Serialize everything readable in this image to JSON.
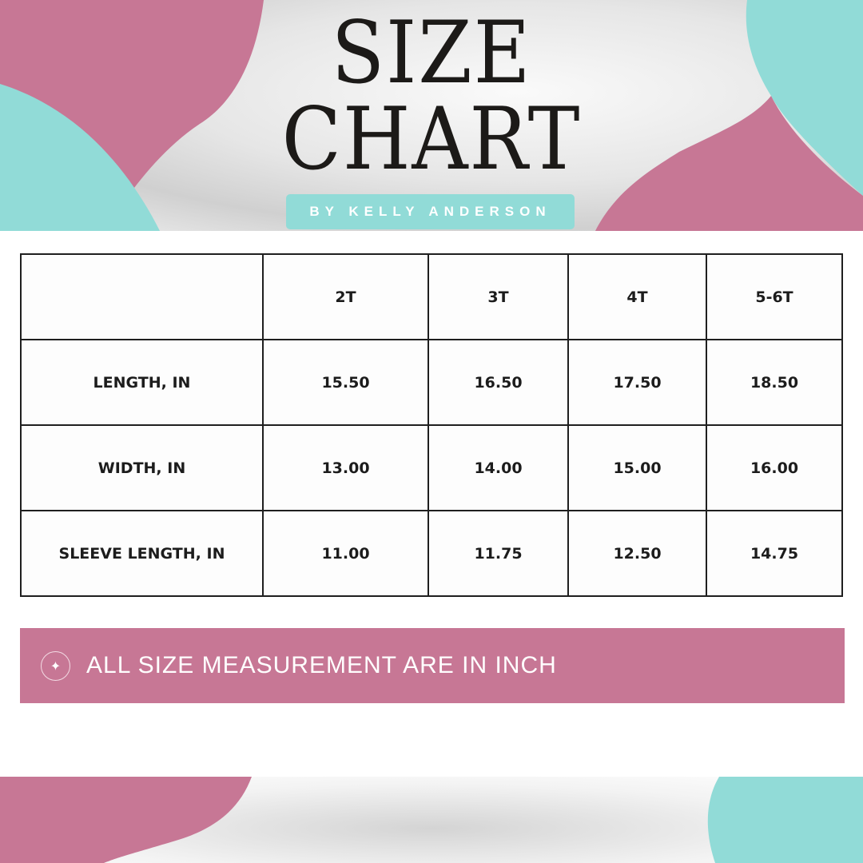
{
  "header": {
    "title_line1": "SIZE",
    "title_line2": "CHART",
    "byline": "BY KELLY ANDERSON"
  },
  "colors": {
    "pink": "#c77795",
    "teal": "#91dbd7",
    "text": "#1c1a18"
  },
  "table": {
    "columns": [
      "",
      "2T",
      "3T",
      "4T",
      "5-6T"
    ],
    "rows": [
      {
        "label": "LENGTH, IN",
        "values": [
          "15.50",
          "16.50",
          "17.50",
          "18.50"
        ]
      },
      {
        "label": "WIDTH, IN",
        "values": [
          "13.00",
          "14.00",
          "15.00",
          "16.00"
        ]
      },
      {
        "label": "SLEEVE LENGTH, IN",
        "values": [
          "11.00",
          "11.75",
          "12.50",
          "14.75"
        ]
      }
    ]
  },
  "note": {
    "icon": "sparkle-icon",
    "text": "ALL SIZE MEASUREMENT ARE IN INCH"
  }
}
